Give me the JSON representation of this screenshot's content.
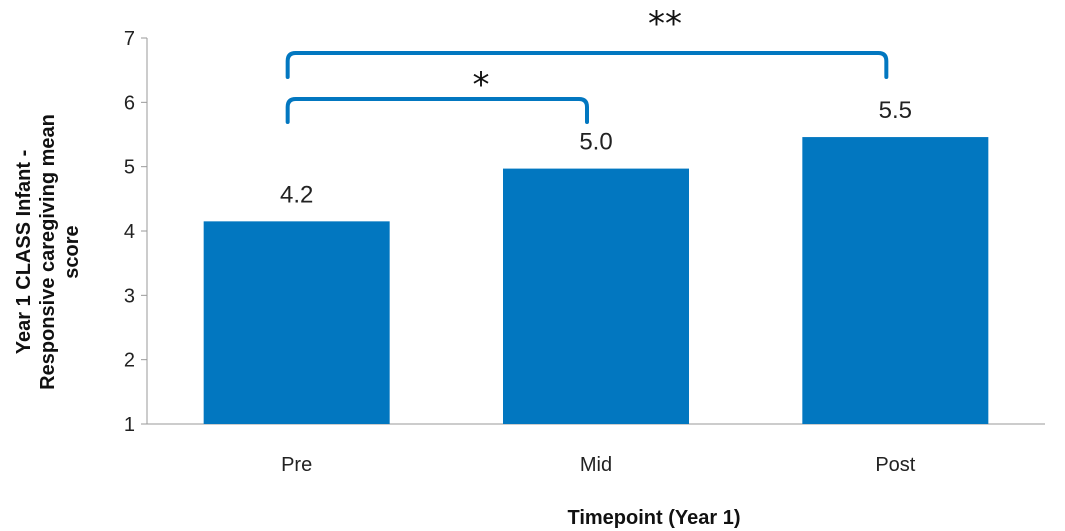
{
  "chart_data": {
    "type": "bar",
    "categories": [
      "Pre",
      "Mid",
      "Post"
    ],
    "values": [
      4.15,
      4.97,
      5.46
    ],
    "data_labels": [
      "4.2",
      "5.0",
      "5.5"
    ],
    "title": "",
    "xlabel": "Timepoint (Year 1)",
    "ylabel_lines": [
      "Year 1 CLASS Infant -",
      "Responsive caregiving mean",
      "score"
    ],
    "ylim": [
      1,
      7
    ],
    "yticks": [
      1,
      2,
      3,
      4,
      5,
      6,
      7
    ],
    "grid": false,
    "bar_color": "#0277c0",
    "bracket_color": "#0277c0",
    "significance": [
      {
        "from": "Pre",
        "to": "Mid",
        "label": "*"
      },
      {
        "from": "Pre",
        "to": "Post",
        "label": "**"
      }
    ]
  }
}
